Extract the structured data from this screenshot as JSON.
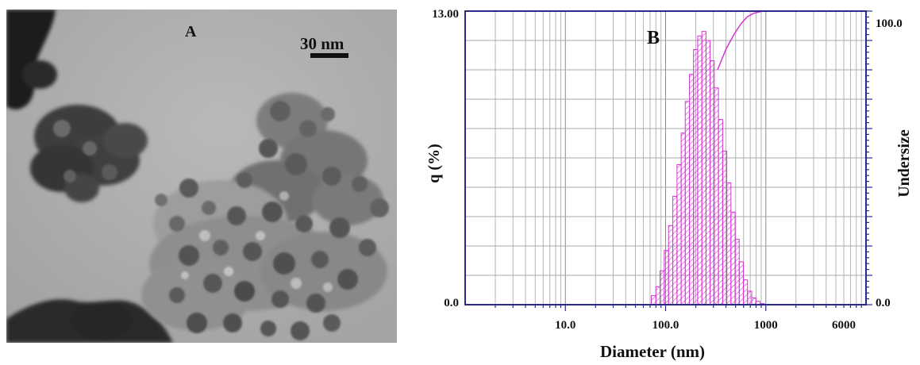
{
  "panel_a": {
    "label": "A",
    "scale_bar": "30 nm"
  },
  "chart_data": {
    "type": "bar",
    "panel_label": "B",
    "xlabel": "Diameter (nm)",
    "ylabel": "q (%)",
    "ylabel_right": "Undersize",
    "x_scale": "log",
    "xlim": [
      1,
      10000
    ],
    "ylim": [
      0,
      13
    ],
    "y2lim": [
      0,
      100
    ],
    "x_tick_labels": [
      "10.0",
      "100.0",
      "1000",
      "6000"
    ],
    "x_tick_values": [
      10,
      100,
      1000,
      6000
    ],
    "y_tick_labels": [
      "0.0",
      "13.00"
    ],
    "y2_tick_labels": [
      "0.0",
      "100.0"
    ],
    "grid": true,
    "series": [
      {
        "type": "histogram",
        "bins": [
          72,
          80,
          88,
          97,
          107,
          118,
          130,
          143,
          157,
          173,
          190,
          209,
          230,
          253,
          278,
          306,
          337,
          371,
          408,
          449,
          494,
          543,
          597,
          657,
          723,
          795,
          875,
          962
        ],
        "values": [
          0.4,
          0.8,
          1.5,
          2.4,
          3.5,
          4.8,
          6.2,
          7.6,
          9.0,
          10.2,
          11.3,
          11.9,
          12.1,
          11.7,
          10.8,
          9.6,
          8.2,
          6.8,
          5.4,
          4.1,
          2.9,
          1.9,
          1.1,
          0.6,
          0.3,
          0.15,
          0.05
        ]
      },
      {
        "type": "line",
        "name": "",
        "x": [
          330,
          400,
          480,
          560,
          650,
          750,
          850,
          950,
          1000
        ],
        "y": [
          80.0,
          87.0,
          92.0,
          95.5,
          98.0,
          99.2,
          99.7,
          100.0,
          100.0
        ]
      }
    ],
    "bar_color": "#d633d6",
    "axis_color": "#2a2a8a"
  }
}
